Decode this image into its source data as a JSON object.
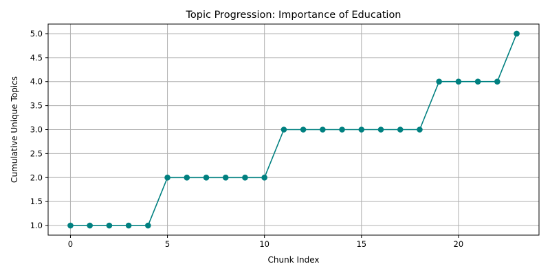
{
  "chart_data": {
    "type": "line",
    "title": "Topic Progression: Importance of Education",
    "xlabel": "Chunk Index",
    "ylabel": "Cumulative Unique Topics",
    "x": [
      0,
      1,
      2,
      3,
      4,
      5,
      6,
      7,
      8,
      9,
      10,
      11,
      12,
      13,
      14,
      15,
      16,
      17,
      18,
      19,
      20,
      21,
      22,
      23
    ],
    "series": [
      {
        "values": [
          1,
          1,
          1,
          1,
          1,
          2,
          2,
          2,
          2,
          2,
          2,
          3,
          3,
          3,
          3,
          3,
          3,
          3,
          3,
          4,
          4,
          4,
          4,
          5
        ],
        "color": "#008080",
        "marker": "circle"
      }
    ],
    "xticks": [
      0,
      5,
      10,
      15,
      20
    ],
    "xtick_labels": [
      "0",
      "5",
      "10",
      "15",
      "20"
    ],
    "yticks": [
      1.0,
      1.5,
      2.0,
      2.5,
      3.0,
      3.5,
      4.0,
      4.5,
      5.0
    ],
    "ytick_labels": [
      "1.0",
      "1.5",
      "2.0",
      "2.5",
      "3.0",
      "3.5",
      "4.0",
      "4.5",
      "5.0"
    ],
    "xlim": [
      -1.15,
      24.15
    ],
    "ylim": [
      0.8,
      5.2
    ],
    "grid": true
  }
}
